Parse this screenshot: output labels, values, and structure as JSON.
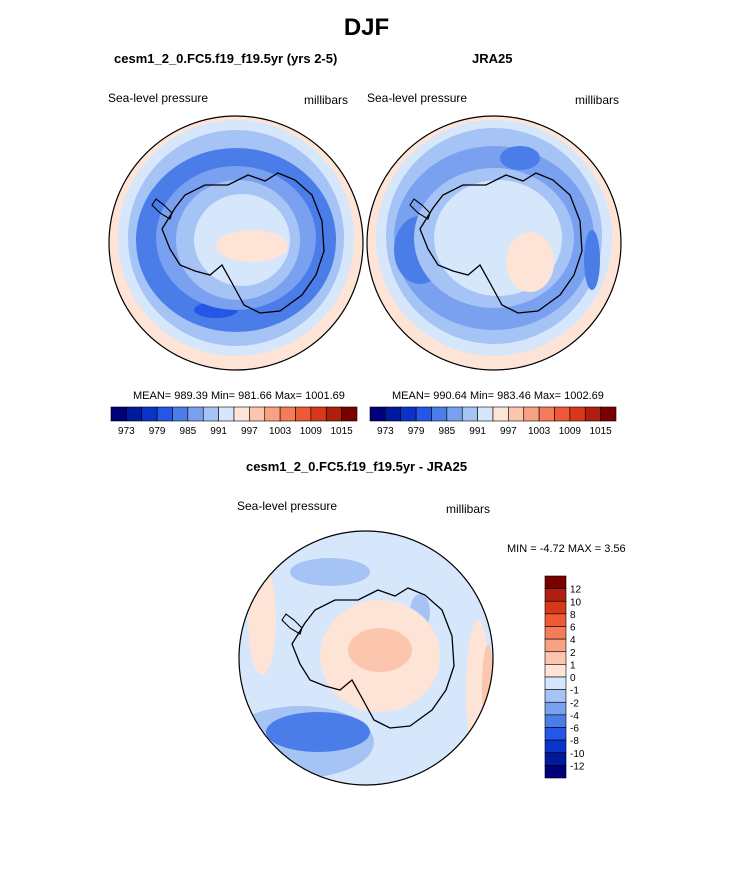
{
  "figure": {
    "title": "DJF"
  },
  "panels": [
    {
      "title": "cesm1_2_0.FC5.f19_f19.5yr (yrs 2-5)",
      "left_label": "Sea-level pressure",
      "right_label": "millibars",
      "stats": "MEAN= 989.39  Min= 981.66  Max= 1001.69"
    },
    {
      "title": "JRA25",
      "left_label": "Sea-level pressure",
      "right_label": "millibars",
      "stats": "MEAN= 990.64  Min= 983.46  Max= 1002.69"
    },
    {
      "title": "cesm1_2_0.FC5.f19_f19.5yr - JRA25",
      "left_label": "Sea-level pressure",
      "right_label": "millibars",
      "stats": "MIN =  -4.72 MAX =   3.56"
    }
  ],
  "colorbars": {
    "horizontal": {
      "colors": [
        "#00007a",
        "#001a9e",
        "#0a33c8",
        "#2456e8",
        "#4a7de8",
        "#7aa0f0",
        "#a6c3f6",
        "#d6e6fb",
        "#fde4d6",
        "#fbc6ad",
        "#f9a283",
        "#f57c58",
        "#ee5a35",
        "#d8381a",
        "#b01e0d",
        "#7a0000"
      ],
      "tick_labels": [
        "973",
        "979",
        "985",
        "991",
        "997",
        "1003",
        "1009",
        "1015"
      ]
    },
    "vertical": {
      "colors": [
        "#7a0000",
        "#b01e0d",
        "#d8381a",
        "#ee5a35",
        "#f57c58",
        "#f9a283",
        "#fbc6ad",
        "#fde4d6",
        "#d6e6fb",
        "#a6c3f6",
        "#7aa0f0",
        "#4a7de8",
        "#2456e8",
        "#0a33c8",
        "#001a9e",
        "#00007a"
      ],
      "tick_labels": [
        "12",
        "10",
        "8",
        "6",
        "4",
        "2",
        "1",
        "0",
        "-1",
        "-2",
        "-4",
        "-6",
        "-8",
        "-10",
        "-12"
      ]
    }
  },
  "chart_data": [
    {
      "type": "heatmap",
      "projection": "polar stereographic (south pole)",
      "title": "cesm1_2_0.FC5.f19_f19.5yr (yrs 2-5)",
      "variable": "Sea-level pressure",
      "units": "millibars",
      "mean": 989.39,
      "min": 981.66,
      "max": 1001.69,
      "contour_levels": [
        973,
        976,
        979,
        982,
        985,
        988,
        991,
        994,
        997,
        1000,
        1003,
        1006,
        1009,
        1012,
        1015
      ]
    },
    {
      "type": "heatmap",
      "projection": "polar stereographic (south pole)",
      "title": "JRA25",
      "variable": "Sea-level pressure",
      "units": "millibars",
      "mean": 990.64,
      "min": 983.46,
      "max": 1002.69,
      "contour_levels": [
        973,
        976,
        979,
        982,
        985,
        988,
        991,
        994,
        997,
        1000,
        1003,
        1006,
        1009,
        1012,
        1015
      ]
    },
    {
      "type": "heatmap",
      "projection": "polar stereographic (south pole)",
      "title": "cesm1_2_0.FC5.f19_f19.5yr - JRA25",
      "variable": "Sea-level pressure",
      "units": "millibars",
      "min": -4.72,
      "max": 3.56,
      "contour_levels": [
        -12,
        -10,
        -8,
        -6,
        -4,
        -2,
        -1,
        0,
        1,
        2,
        4,
        6,
        8,
        10,
        12
      ]
    }
  ]
}
